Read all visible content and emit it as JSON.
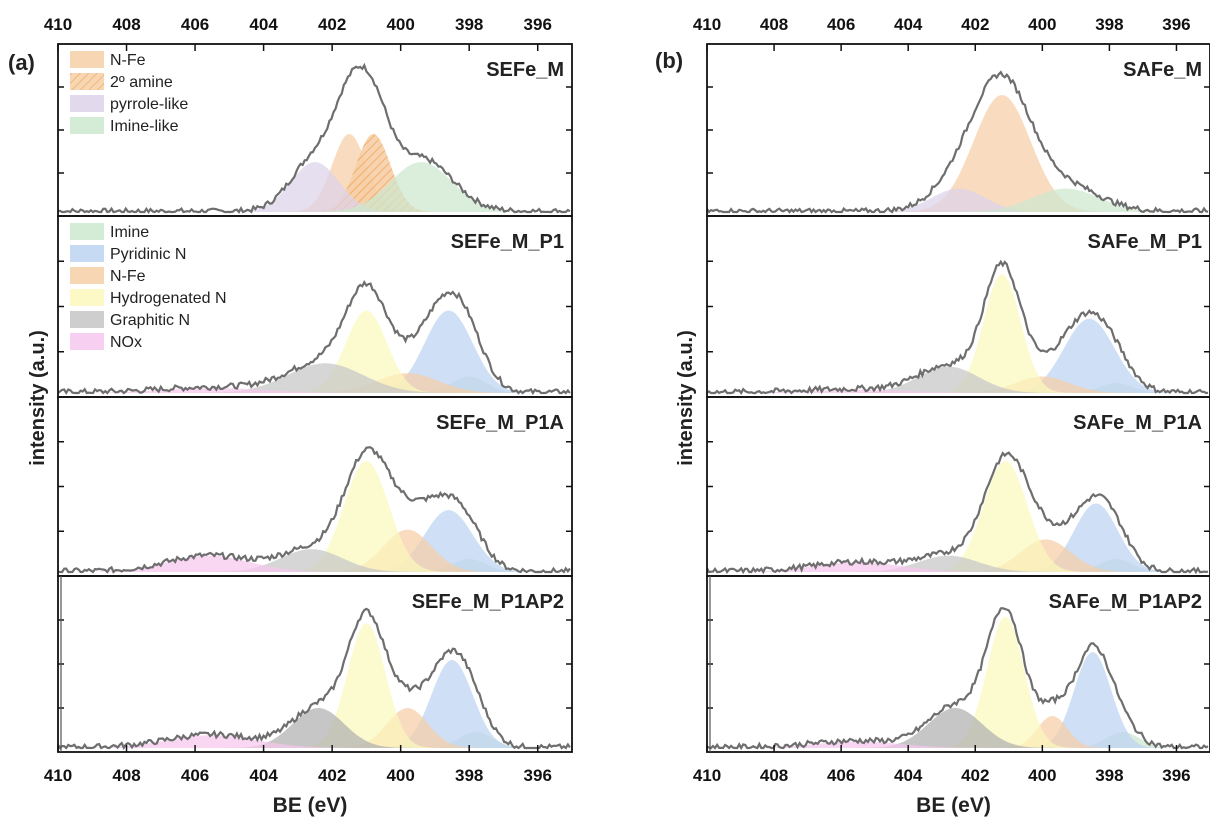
{
  "chart_data": [
    {
      "type": "area",
      "panel_label": "(a)",
      "xlabel": "BE (eV)",
      "ylabel": "intensity (a.u.)",
      "xlim": [
        410,
        395
      ],
      "x_ticks": [
        "410",
        "408",
        "406",
        "404",
        "402",
        "400",
        "398",
        "396"
      ],
      "x_tick_values": [
        410,
        408,
        406,
        404,
        402,
        400,
        398,
        396
      ],
      "x_reversed": true,
      "subplots": [
        {
          "title": "SEFe_M",
          "legend": [
            "N-Fe",
            "2º amine",
            "pyrrole-like",
            "Imine-like"
          ],
          "peaks": [
            {
              "name": "N-Fe",
              "center": 401.5,
              "height": 0.5,
              "width": 0.5,
              "color": "#f6cfa6",
              "pattern": "none"
            },
            {
              "name": "2º amine",
              "center": 400.8,
              "height": 0.5,
              "width": 0.5,
              "color": "#f6cfa6",
              "pattern": "hatch"
            },
            {
              "name": "pyrrole-like",
              "center": 402.5,
              "height": 0.32,
              "width": 0.7,
              "color": "#ddd2ea",
              "pattern": "none"
            },
            {
              "name": "Imine-like",
              "center": 399.4,
              "height": 0.32,
              "width": 0.9,
              "color": "#cde8cf",
              "pattern": "none"
            }
          ],
          "envelope_peak": 0.93
        },
        {
          "title": "SEFe_M_P1",
          "legend": [
            "Imine",
            "Pyridinic N",
            "N-Fe",
            "Hydrogenated N",
            "Graphitic N",
            "NOx"
          ],
          "peaks": [
            {
              "name": "Imine",
              "center": 398.0,
              "height": 0.1,
              "width": 0.5,
              "color": "#cde8cf",
              "pattern": "none"
            },
            {
              "name": "Pyridinic N",
              "center": 398.6,
              "height": 0.5,
              "width": 0.7,
              "color": "#bcd3f2",
              "pattern": "none"
            },
            {
              "name": "N-Fe",
              "center": 399.8,
              "height": 0.12,
              "width": 0.9,
              "color": "#f6cfa6",
              "pattern": "none"
            },
            {
              "name": "Hydrogenated N",
              "center": 401.0,
              "height": 0.5,
              "width": 0.6,
              "color": "#fbf8bd",
              "pattern": "none"
            },
            {
              "name": "Graphitic N",
              "center": 402.2,
              "height": 0.18,
              "width": 1.1,
              "color": "#c6c6c6",
              "pattern": "none"
            },
            {
              "name": "NOx",
              "center": 405.5,
              "height": 0.03,
              "width": 1.5,
              "color": "#f6c8ef",
              "pattern": "none"
            }
          ],
          "envelope_peak": 0.66
        },
        {
          "title": "SEFe_M_P1A",
          "legend": [],
          "peaks": [
            {
              "name": "Imine",
              "center": 398.0,
              "height": 0.08,
              "width": 0.5,
              "color": "#cde8cf",
              "pattern": "none"
            },
            {
              "name": "Pyridinic N",
              "center": 398.6,
              "height": 0.38,
              "width": 0.7,
              "color": "#bcd3f2",
              "pattern": "none"
            },
            {
              "name": "N-Fe",
              "center": 399.8,
              "height": 0.26,
              "width": 0.7,
              "color": "#f6cfa6",
              "pattern": "none"
            },
            {
              "name": "Hydrogenated N",
              "center": 401.0,
              "height": 0.68,
              "width": 0.65,
              "color": "#fbf8bd",
              "pattern": "none"
            },
            {
              "name": "Graphitic N",
              "center": 402.6,
              "height": 0.14,
              "width": 0.9,
              "color": "#c6c6c6",
              "pattern": "none"
            },
            {
              "name": "NOx",
              "center": 405.6,
              "height": 0.1,
              "width": 1.2,
              "color": "#f6c8ef",
              "pattern": "none"
            }
          ],
          "envelope_peak": 0.75
        },
        {
          "title": "SEFe_M_P1AP2",
          "legend": [],
          "peaks": [
            {
              "name": "Imine",
              "center": 397.8,
              "height": 0.1,
              "width": 0.5,
              "color": "#cde8cf",
              "pattern": "none"
            },
            {
              "name": "Pyridinic N",
              "center": 398.5,
              "height": 0.55,
              "width": 0.6,
              "color": "#bcd3f2",
              "pattern": "none"
            },
            {
              "name": "N-Fe",
              "center": 399.8,
              "height": 0.25,
              "width": 0.6,
              "color": "#f6cfa6",
              "pattern": "none"
            },
            {
              "name": "Hydrogenated N",
              "center": 401.0,
              "height": 0.78,
              "width": 0.55,
              "color": "#fbf8bd",
              "pattern": "none"
            },
            {
              "name": "Graphitic N",
              "center": 402.4,
              "height": 0.25,
              "width": 0.75,
              "color": "#b0b0b0",
              "pattern": "none"
            },
            {
              "name": "NOx",
              "center": 405.5,
              "height": 0.08,
              "width": 1.3,
              "color": "#f6c8ef",
              "pattern": "none"
            }
          ],
          "envelope_peak": 0.85
        }
      ]
    },
    {
      "type": "area",
      "panel_label": "(b)",
      "xlabel": "BE (eV)",
      "ylabel": "intensity (a.u.)",
      "xlim": [
        410,
        395
      ],
      "x_ticks": [
        "410",
        "408",
        "406",
        "404",
        "402",
        "400",
        "398",
        "396"
      ],
      "x_tick_values": [
        410,
        408,
        406,
        404,
        402,
        400,
        398,
        396
      ],
      "x_reversed": true,
      "subplots": [
        {
          "title": "SAFe_M",
          "legend": [],
          "peaks": [
            {
              "name": "N-Fe",
              "center": 401.2,
              "height": 0.75,
              "width": 0.85,
              "color": "#f6cfa6",
              "pattern": "none"
            },
            {
              "name": "pyrrole-like",
              "center": 402.5,
              "height": 0.15,
              "width": 0.8,
              "color": "#ddd2ea",
              "pattern": "none"
            },
            {
              "name": "Imine-like",
              "center": 399.3,
              "height": 0.15,
              "width": 1.0,
              "color": "#cde8cf",
              "pattern": "none"
            }
          ],
          "envelope_peak": 0.88
        },
        {
          "title": "SAFe_M_P1",
          "legend": [],
          "peaks": [
            {
              "name": "Imine",
              "center": 397.8,
              "height": 0.06,
              "width": 0.5,
              "color": "#cde8cf",
              "pattern": "none"
            },
            {
              "name": "Pyridinic N",
              "center": 398.6,
              "height": 0.45,
              "width": 0.75,
              "color": "#bcd3f2",
              "pattern": "none"
            },
            {
              "name": "N-Fe",
              "center": 400.0,
              "height": 0.1,
              "width": 0.8,
              "color": "#f6cfa6",
              "pattern": "none"
            },
            {
              "name": "Hydrogenated N",
              "center": 401.2,
              "height": 0.72,
              "width": 0.55,
              "color": "#fbf8bd",
              "pattern": "none"
            },
            {
              "name": "Graphitic N",
              "center": 402.8,
              "height": 0.16,
              "width": 0.9,
              "color": "#c6c6c6",
              "pattern": "none"
            },
            {
              "name": "NOx",
              "center": 405.5,
              "height": 0.02,
              "width": 1.5,
              "color": "#f6c8ef",
              "pattern": "none"
            }
          ],
          "envelope_peak": 0.78
        },
        {
          "title": "SAFe_M_P1A",
          "legend": [],
          "peaks": [
            {
              "name": "Imine",
              "center": 397.8,
              "height": 0.08,
              "width": 0.5,
              "color": "#cde8cf",
              "pattern": "none"
            },
            {
              "name": "Pyridinic N",
              "center": 398.4,
              "height": 0.42,
              "width": 0.65,
              "color": "#bcd3f2",
              "pattern": "none"
            },
            {
              "name": "N-Fe",
              "center": 399.9,
              "height": 0.2,
              "width": 0.75,
              "color": "#f6cfa6",
              "pattern": "none"
            },
            {
              "name": "Hydrogenated N",
              "center": 401.1,
              "height": 0.68,
              "width": 0.65,
              "color": "#fbf8bd",
              "pattern": "none"
            },
            {
              "name": "Graphitic N",
              "center": 402.8,
              "height": 0.1,
              "width": 0.9,
              "color": "#c6c6c6",
              "pattern": "none"
            },
            {
              "name": "NOx",
              "center": 405.5,
              "height": 0.06,
              "width": 1.3,
              "color": "#f6c8ef",
              "pattern": "none"
            }
          ],
          "envelope_peak": 0.72
        },
        {
          "title": "SAFe_M_P1AP2",
          "legend": [],
          "peaks": [
            {
              "name": "Imine",
              "center": 397.6,
              "height": 0.1,
              "width": 0.5,
              "color": "#cde8cf",
              "pattern": "none"
            },
            {
              "name": "Pyridinic N",
              "center": 398.5,
              "height": 0.6,
              "width": 0.55,
              "color": "#bcd3f2",
              "pattern": "none"
            },
            {
              "name": "N-Fe",
              "center": 399.7,
              "height": 0.2,
              "width": 0.45,
              "color": "#f6cfa6",
              "pattern": "none"
            },
            {
              "name": "Hydrogenated N",
              "center": 401.1,
              "height": 0.82,
              "width": 0.55,
              "color": "#fbf8bd",
              "pattern": "none"
            },
            {
              "name": "Graphitic N",
              "center": 402.6,
              "height": 0.25,
              "width": 0.8,
              "color": "#b0b0b0",
              "pattern": "none"
            },
            {
              "name": "NOx",
              "center": 405.5,
              "height": 0.04,
              "width": 1.3,
              "color": "#f6c8ef",
              "pattern": "none"
            }
          ],
          "envelope_peak": 0.88
        }
      ]
    }
  ]
}
